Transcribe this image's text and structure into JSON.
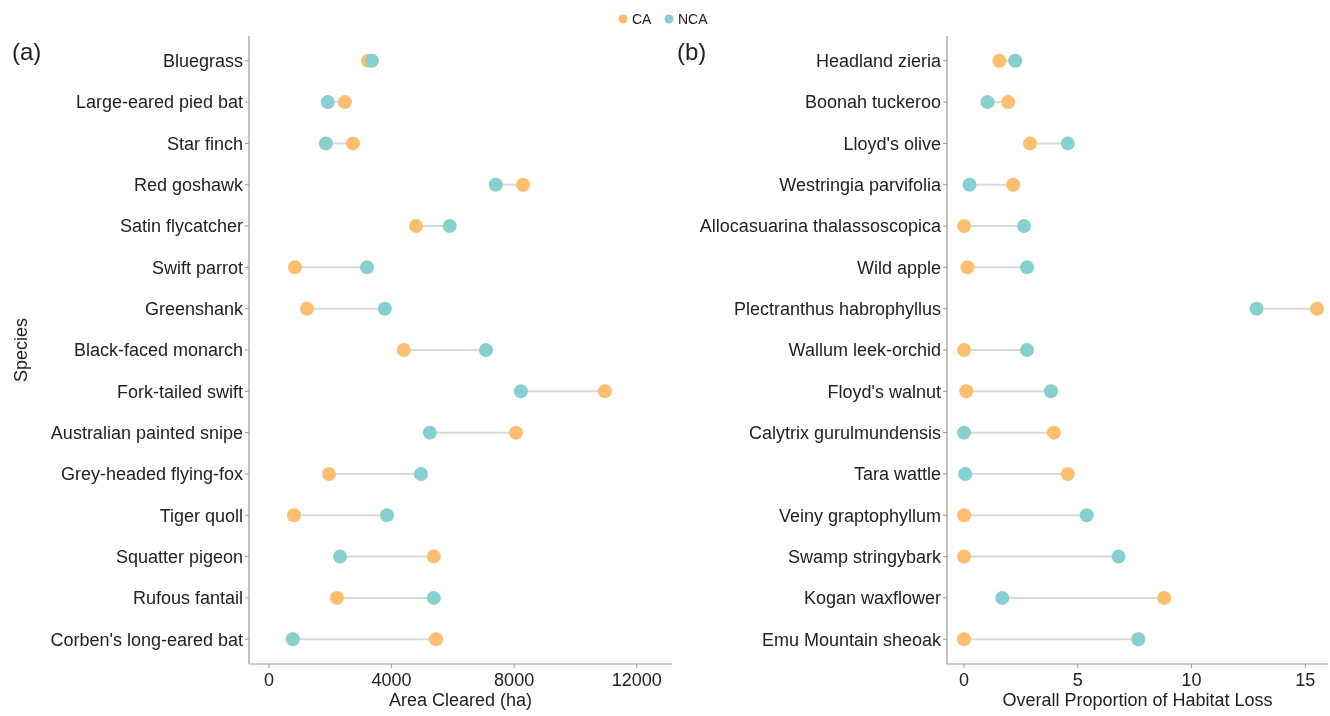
{
  "chart_data": [
    {
      "type": "scatter",
      "title": "(a)",
      "orientation": "horizontal",
      "xlabel": "Area Cleared (ha)",
      "ylabel": "Species",
      "legend": "top",
      "marker": "circle",
      "categories": [
        "Bluegrass",
        "Large-eared pied bat",
        "Star finch",
        "Red goshawk",
        "Satin flycatcher",
        "Swift parrot",
        "Greenshank",
        "Black-faced monarch",
        "Fork-tailed swift",
        "Australian painted snipe",
        "Grey-headed flying-fox",
        "Tiger quoll",
        "Squatter pigeon",
        "Rufous fantail",
        "Corben's long-eared bat"
      ],
      "xlim": [
        -650,
        13150
      ],
      "xticks": [
        0,
        4000,
        8000,
        12000
      ],
      "series": [
        {
          "name": "CA",
          "color": "#fdbf6f",
          "values": [
            3230,
            2480,
            2740,
            8290,
            4800,
            850,
            1240,
            4400,
            10960,
            8060,
            1960,
            820,
            5380,
            2220,
            5450
          ]
        },
        {
          "name": "NCA",
          "color": "#88cfcf",
          "values": [
            3360,
            1920,
            1860,
            7400,
            5900,
            3200,
            3780,
            7080,
            8220,
            5250,
            4960,
            3850,
            2320,
            5380,
            780
          ]
        }
      ]
    },
    {
      "type": "scatter",
      "title": "(b)",
      "orientation": "horizontal",
      "xlabel": "Overall Proportion of Habitat Loss",
      "marker": "circle",
      "categories": [
        "Headland zieria",
        "Boonah tuckeroo",
        "Lloyd's olive",
        "Westringia parvifolia",
        "Allocasuarina thalassoscopica",
        "Wild apple",
        "Plectranthus habrophyllus",
        "Wallum leek-orchid",
        "Floyd's walnut",
        "Calytrix gurulmundensis",
        "Tara wattle",
        "Veiny graptophyllum",
        "Swamp stringybark",
        "Kogan waxflower",
        "Emu Mountain sheoak"
      ],
      "xlim": [
        -0.75,
        16
      ],
      "xticks": [
        0,
        5,
        10,
        15
      ],
      "series": [
        {
          "color": "#fdbf6f",
          "values": [
            1.55,
            1.94,
            2.9,
            2.16,
            0,
            0.15,
            15.52,
            0,
            0.1,
            3.95,
            4.56,
            0,
            0,
            8.8,
            0
          ]
        },
        {
          "color": "#88cfcf",
          "values": [
            2.25,
            1.03,
            4.56,
            0.24,
            2.64,
            2.77,
            12.86,
            2.77,
            3.82,
            0,
            0.05,
            5.39,
            6.79,
            1.68,
            7.66
          ]
        }
      ]
    }
  ]
}
